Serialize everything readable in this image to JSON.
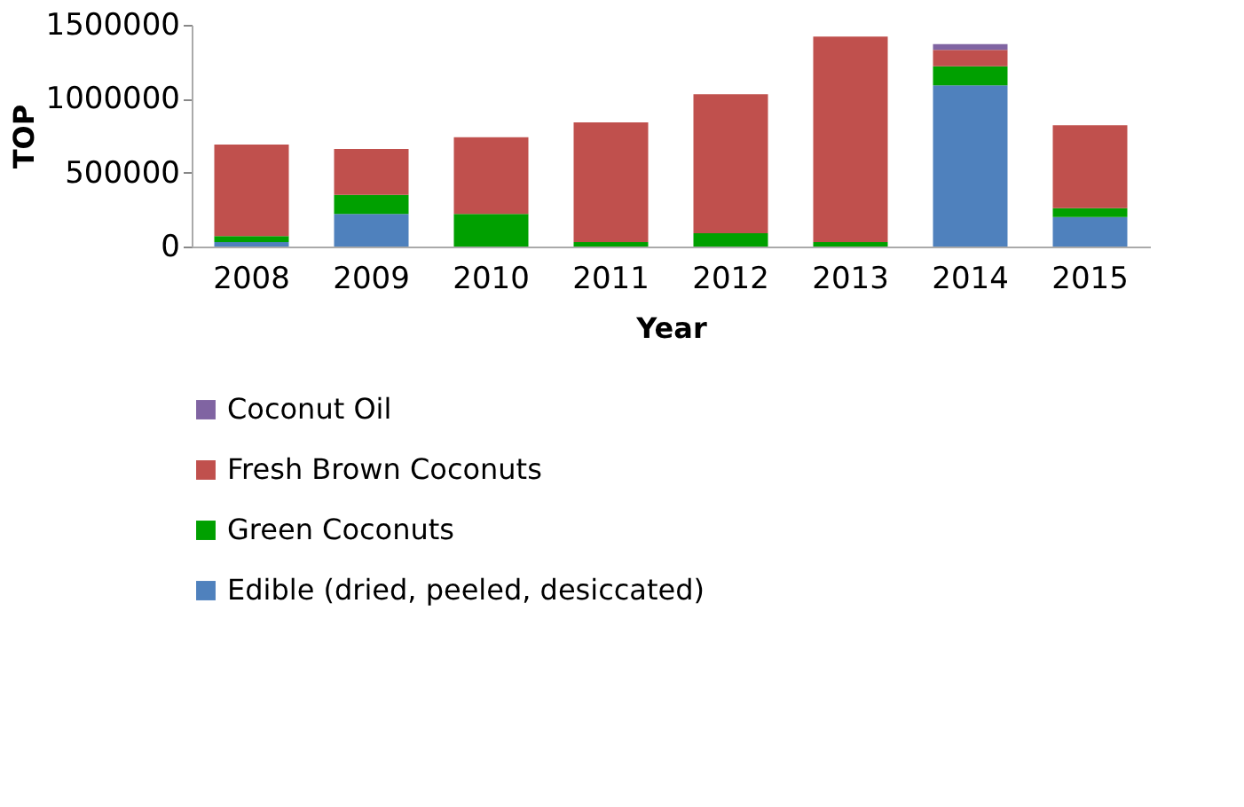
{
  "chart_data": {
    "type": "bar",
    "stacked": true,
    "xlabel": "Year",
    "ylabel": "TOP",
    "categories": [
      "2008",
      "2009",
      "2010",
      "2011",
      "2012",
      "2013",
      "2014",
      "2015"
    ],
    "series": [
      {
        "name": "Edible (dried, peeled, desiccated)",
        "color": "#4f81bd",
        "values": [
          30000,
          220000,
          0,
          0,
          0,
          0,
          1090000,
          200000
        ]
      },
      {
        "name": "Green Coconuts",
        "color": "#00a000",
        "values": [
          40000,
          130000,
          220000,
          30000,
          90000,
          30000,
          130000,
          60000
        ]
      },
      {
        "name": "Fresh Brown Coconuts",
        "color": "#c0504d",
        "values": [
          620000,
          310000,
          520000,
          810000,
          940000,
          1390000,
          110000,
          560000
        ]
      },
      {
        "name": "Coconut Oil",
        "color": "#8064a2",
        "values": [
          0,
          0,
          0,
          0,
          0,
          0,
          40000,
          0
        ]
      }
    ],
    "ylim": [
      0,
      1500000
    ],
    "yticks": [
      0,
      500000,
      1000000,
      1500000
    ],
    "grid": false,
    "legend": "bottom"
  }
}
